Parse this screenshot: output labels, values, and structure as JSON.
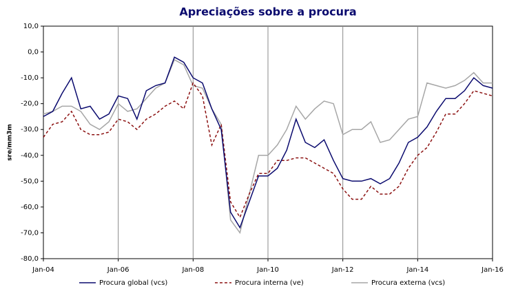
{
  "chart_data": {
    "type": "line",
    "title": "Apreciações sobre a procura",
    "y_label": "sre/mm3m",
    "x": [
      "2004-01",
      "2004-04",
      "2004-07",
      "2004-10",
      "2005-01",
      "2005-04",
      "2005-07",
      "2005-10",
      "2006-01",
      "2006-04",
      "2006-07",
      "2006-10",
      "2007-01",
      "2007-04",
      "2007-07",
      "2007-10",
      "2008-01",
      "2008-04",
      "2008-07",
      "2008-10",
      "2009-01",
      "2009-04",
      "2009-07",
      "2009-10",
      "2010-01",
      "2010-04",
      "2010-07",
      "2010-10",
      "2011-01",
      "2011-04",
      "2011-07",
      "2011-10",
      "2012-01",
      "2012-04",
      "2012-07",
      "2012-10",
      "2013-01",
      "2013-04",
      "2013-07",
      "2013-10",
      "2014-01",
      "2014-04",
      "2014-07",
      "2014-10",
      "2015-01",
      "2015-04",
      "2015-07",
      "2015-10",
      "2016-01"
    ],
    "series": [
      {
        "name": "Procura global (vcs)",
        "color": "#0a0a6e",
        "dash": "solid",
        "values": [
          -25,
          -23,
          -16,
          -10,
          -22,
          -21,
          -26,
          -24,
          -17,
          -18,
          -26,
          -15,
          -13,
          -12,
          -2,
          -4,
          -10,
          -12,
          -22,
          -30,
          -62,
          -68,
          -58,
          -48,
          -48,
          -45,
          -38,
          -26,
          -35,
          -37,
          -34,
          -42,
          -49,
          -50,
          -50,
          -49,
          -51,
          -49,
          -43,
          -35,
          -33,
          -29,
          -23,
          -18,
          -18,
          -15,
          -10,
          -13,
          -14
        ]
      },
      {
        "name": "Procura interna (ve)",
        "color": "#8b1010",
        "dash": "dashed",
        "values": [
          -33,
          -28,
          -27,
          -23,
          -30,
          -32,
          -32,
          -31,
          -26,
          -27,
          -30,
          -26,
          -24,
          -21,
          -19,
          -22,
          -12,
          -17,
          -36,
          -28,
          -58,
          -64,
          -55,
          -47,
          -47,
          -42,
          -42,
          -41,
          -41,
          -43,
          -45,
          -47,
          -53,
          -57,
          -57,
          -52,
          -55,
          -55,
          -52,
          -45,
          -40,
          -37,
          -31,
          -24,
          -24,
          -20,
          -15,
          -16,
          -17
        ]
      },
      {
        "name": "Procura externa (vcs)",
        "color": "#a6a6a6",
        "dash": "solid",
        "values": [
          -24,
          -23,
          -21,
          -21,
          -23,
          -28,
          -30,
          -27,
          -20,
          -23,
          -22,
          -18,
          -14,
          -12,
          -3,
          -5,
          -13,
          -14,
          -22,
          -28,
          -65,
          -70,
          -55,
          -40,
          -40,
          -36,
          -30,
          -21,
          -26,
          -22,
          -19,
          -20,
          -32,
          -30,
          -30,
          -27,
          -35,
          -34,
          -30,
          -26,
          -25,
          -12,
          -13,
          -14,
          -13,
          -11,
          -8,
          -12,
          -12
        ]
      }
    ],
    "xlim": [
      "2004-01",
      "2016-01"
    ],
    "xticks": [
      {
        "value": "2004-01",
        "label": "Jan-04"
      },
      {
        "value": "2006-01",
        "label": "Jan-06"
      },
      {
        "value": "2008-01",
        "label": "Jan-08"
      },
      {
        "value": "2010-01",
        "label": "Jan-10"
      },
      {
        "value": "2012-01",
        "label": "Jan-12"
      },
      {
        "value": "2014-01",
        "label": "Jan-14"
      },
      {
        "value": "2016-01",
        "label": "Jan-16"
      }
    ],
    "ylim": [
      -80,
      10
    ],
    "yticks": [
      {
        "value": 10,
        "label": "10,0"
      },
      {
        "value": 0,
        "label": "0,0"
      },
      {
        "value": -10,
        "label": "-10,0"
      },
      {
        "value": -20,
        "label": "-20,0"
      },
      {
        "value": -30,
        "label": "-30,0"
      },
      {
        "value": -40,
        "label": "-40,0"
      },
      {
        "value": -50,
        "label": "-50,0"
      },
      {
        "value": -60,
        "label": "-60,0"
      },
      {
        "value": -70,
        "label": "-70,0"
      },
      {
        "value": -80,
        "label": "-80,0"
      }
    ],
    "grid": "x",
    "legend": "bottom"
  }
}
